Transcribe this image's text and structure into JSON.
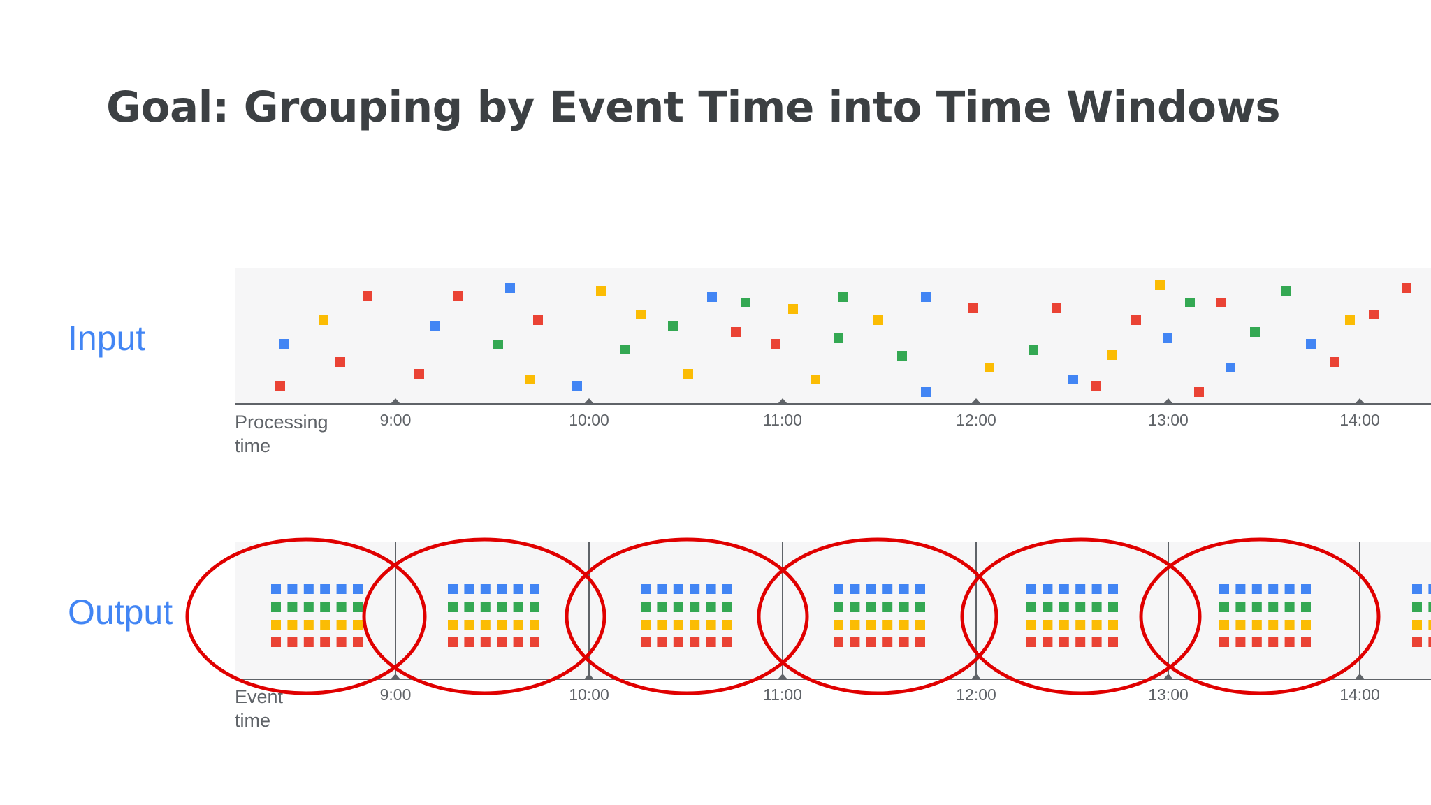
{
  "title": "Goal: Grouping by Event Time into Time Windows",
  "input": {
    "label": "Input",
    "axis_caption_line1": "Processing",
    "axis_caption_line2": "time"
  },
  "output": {
    "label": "Output",
    "axis_caption_line1": "Event",
    "axis_caption_line2": "time"
  },
  "ticks": [
    "9:00",
    "10:00",
    "11:00",
    "12:00",
    "13:00",
    "14:00"
  ],
  "colors": {
    "blue": "#4285f4",
    "green": "#34a853",
    "yellow": "#fbbc04",
    "red": "#ea4335",
    "window_circle": "#e00000",
    "band": "#f6f6f7",
    "axis": "#5f6368"
  }
}
